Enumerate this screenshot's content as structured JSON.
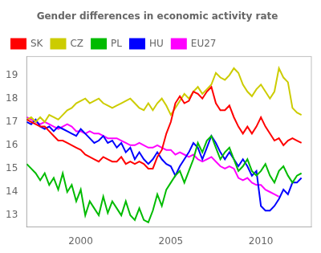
{
  "chart_data": {
    "type": "line",
    "title": "Gender differences in economic activity rate",
    "x": [
      1997,
      1997.25,
      1997.5,
      1997.75,
      1998,
      1998.25,
      1998.5,
      1998.75,
      1999,
      1999.25,
      1999.5,
      1999.75,
      2000,
      2000.25,
      2000.5,
      2000.75,
      2001,
      2001.25,
      2001.5,
      2001.75,
      2002,
      2002.25,
      2002.5,
      2002.75,
      2003,
      2003.25,
      2003.5,
      2003.75,
      2004,
      2004.25,
      2004.5,
      2004.75,
      2005,
      2005.25,
      2005.5,
      2005.75,
      2006,
      2006.25,
      2006.5,
      2006.75,
      2007,
      2007.25,
      2007.5,
      2007.75,
      2008,
      2008.25,
      2008.5,
      2008.75,
      2009,
      2009.25,
      2009.5,
      2009.75,
      2010,
      2010.25,
      2010.5,
      2010.75,
      2011,
      2011.25,
      2011.5,
      2011.75,
      2012,
      2012.25
    ],
    "series": [
      {
        "name": "SK",
        "color": "#FF0000",
        "values": [
          17.1,
          17.0,
          16.9,
          16.8,
          16.8,
          16.6,
          16.4,
          16.2,
          16.2,
          16.1,
          16.0,
          15.9,
          15.8,
          15.6,
          15.5,
          15.4,
          15.3,
          15.5,
          15.4,
          15.3,
          15.3,
          15.5,
          15.2,
          15.3,
          15.2,
          15.3,
          15.2,
          15.0,
          15.0,
          15.5,
          15.8,
          16.5,
          17.0,
          17.8,
          18.1,
          17.8,
          17.9,
          18.3,
          18.2,
          18.0,
          18.3,
          18.5,
          17.8,
          17.5,
          17.5,
          17.7,
          17.2,
          16.8,
          16.5,
          16.8,
          16.5,
          16.8,
          17.2,
          16.8,
          16.5,
          16.2,
          16.3,
          16.0,
          16.2,
          16.3,
          16.2,
          16.1
        ]
      },
      {
        "name": "CZ",
        "color": "#CCCC00",
        "values": [
          17.1,
          17.2,
          17.0,
          17.2,
          17.0,
          17.3,
          17.2,
          17.1,
          17.3,
          17.5,
          17.6,
          17.8,
          17.9,
          18.0,
          17.8,
          17.9,
          18.0,
          17.8,
          17.7,
          17.6,
          17.7,
          17.8,
          17.9,
          18.0,
          17.8,
          17.6,
          17.5,
          17.8,
          17.5,
          17.8,
          18.0,
          17.7,
          17.3,
          17.6,
          17.9,
          18.2,
          18.0,
          18.3,
          18.5,
          18.2,
          18.4,
          18.6,
          19.1,
          18.9,
          18.8,
          19.0,
          19.3,
          19.1,
          18.6,
          18.3,
          18.1,
          18.4,
          18.6,
          18.3,
          18.0,
          18.3,
          19.3,
          18.9,
          18.7,
          17.6,
          17.4,
          17.3
        ]
      },
      {
        "name": "PL",
        "color": "#00BB00",
        "values": [
          15.2,
          15.0,
          14.8,
          14.5,
          14.8,
          14.3,
          14.6,
          14.1,
          14.8,
          14.0,
          14.3,
          13.6,
          14.1,
          13.0,
          13.6,
          13.3,
          13.0,
          13.8,
          13.1,
          13.6,
          13.3,
          13.0,
          13.6,
          13.0,
          12.8,
          13.3,
          12.8,
          12.7,
          13.2,
          13.9,
          13.4,
          14.1,
          14.4,
          14.7,
          14.9,
          14.4,
          14.9,
          15.4,
          16.1,
          15.7,
          16.2,
          16.4,
          15.9,
          15.4,
          15.7,
          15.9,
          15.4,
          14.9,
          15.1,
          15.4,
          14.9,
          14.7,
          14.9,
          15.2,
          14.7,
          14.4,
          14.9,
          15.1,
          14.7,
          14.4,
          14.7,
          14.8
        ]
      },
      {
        "name": "HU",
        "color": "#0000FF",
        "values": [
          17.0,
          16.9,
          17.1,
          16.8,
          16.7,
          16.8,
          16.6,
          16.8,
          16.7,
          16.6,
          16.5,
          16.4,
          16.7,
          16.5,
          16.3,
          16.1,
          16.2,
          16.4,
          16.1,
          16.2,
          15.9,
          16.1,
          15.7,
          15.9,
          15.4,
          15.7,
          15.4,
          15.2,
          15.4,
          15.7,
          15.4,
          15.2,
          15.1,
          14.7,
          15.1,
          15.4,
          15.7,
          16.1,
          15.9,
          15.4,
          15.9,
          16.4,
          16.1,
          15.7,
          15.4,
          15.7,
          15.4,
          15.1,
          15.4,
          15.1,
          14.7,
          14.9,
          13.4,
          13.2,
          13.2,
          13.4,
          13.7,
          14.1,
          13.9,
          14.4,
          14.4,
          14.6
        ]
      },
      {
        "name": "EU27",
        "color": "#FF00FF",
        "values": [
          17.2,
          17.1,
          17.0,
          16.9,
          17.0,
          16.9,
          16.8,
          16.7,
          16.8,
          16.9,
          16.8,
          16.6,
          16.6,
          16.5,
          16.6,
          16.5,
          16.5,
          16.4,
          16.3,
          16.3,
          16.3,
          16.2,
          16.1,
          16.0,
          16.0,
          16.1,
          16.0,
          15.9,
          15.9,
          16.0,
          15.9,
          15.8,
          15.8,
          15.6,
          15.7,
          15.6,
          15.5,
          15.6,
          15.4,
          15.3,
          15.4,
          15.5,
          15.3,
          15.1,
          15.0,
          15.1,
          15.0,
          14.6,
          14.5,
          14.6,
          14.4,
          14.3,
          14.3,
          14.1,
          14.0,
          13.9,
          13.8,
          null,
          null,
          null,
          null,
          null
        ]
      }
    ],
    "xlim": [
      1997.0,
      2012.8
    ],
    "xticks": [
      2000,
      2005,
      2010
    ],
    "ylim": [
      12.5,
      19.8
    ],
    "yticks": [
      13,
      14,
      15,
      16,
      17,
      18,
      19
    ],
    "grid": false,
    "legend": "upper left"
  }
}
